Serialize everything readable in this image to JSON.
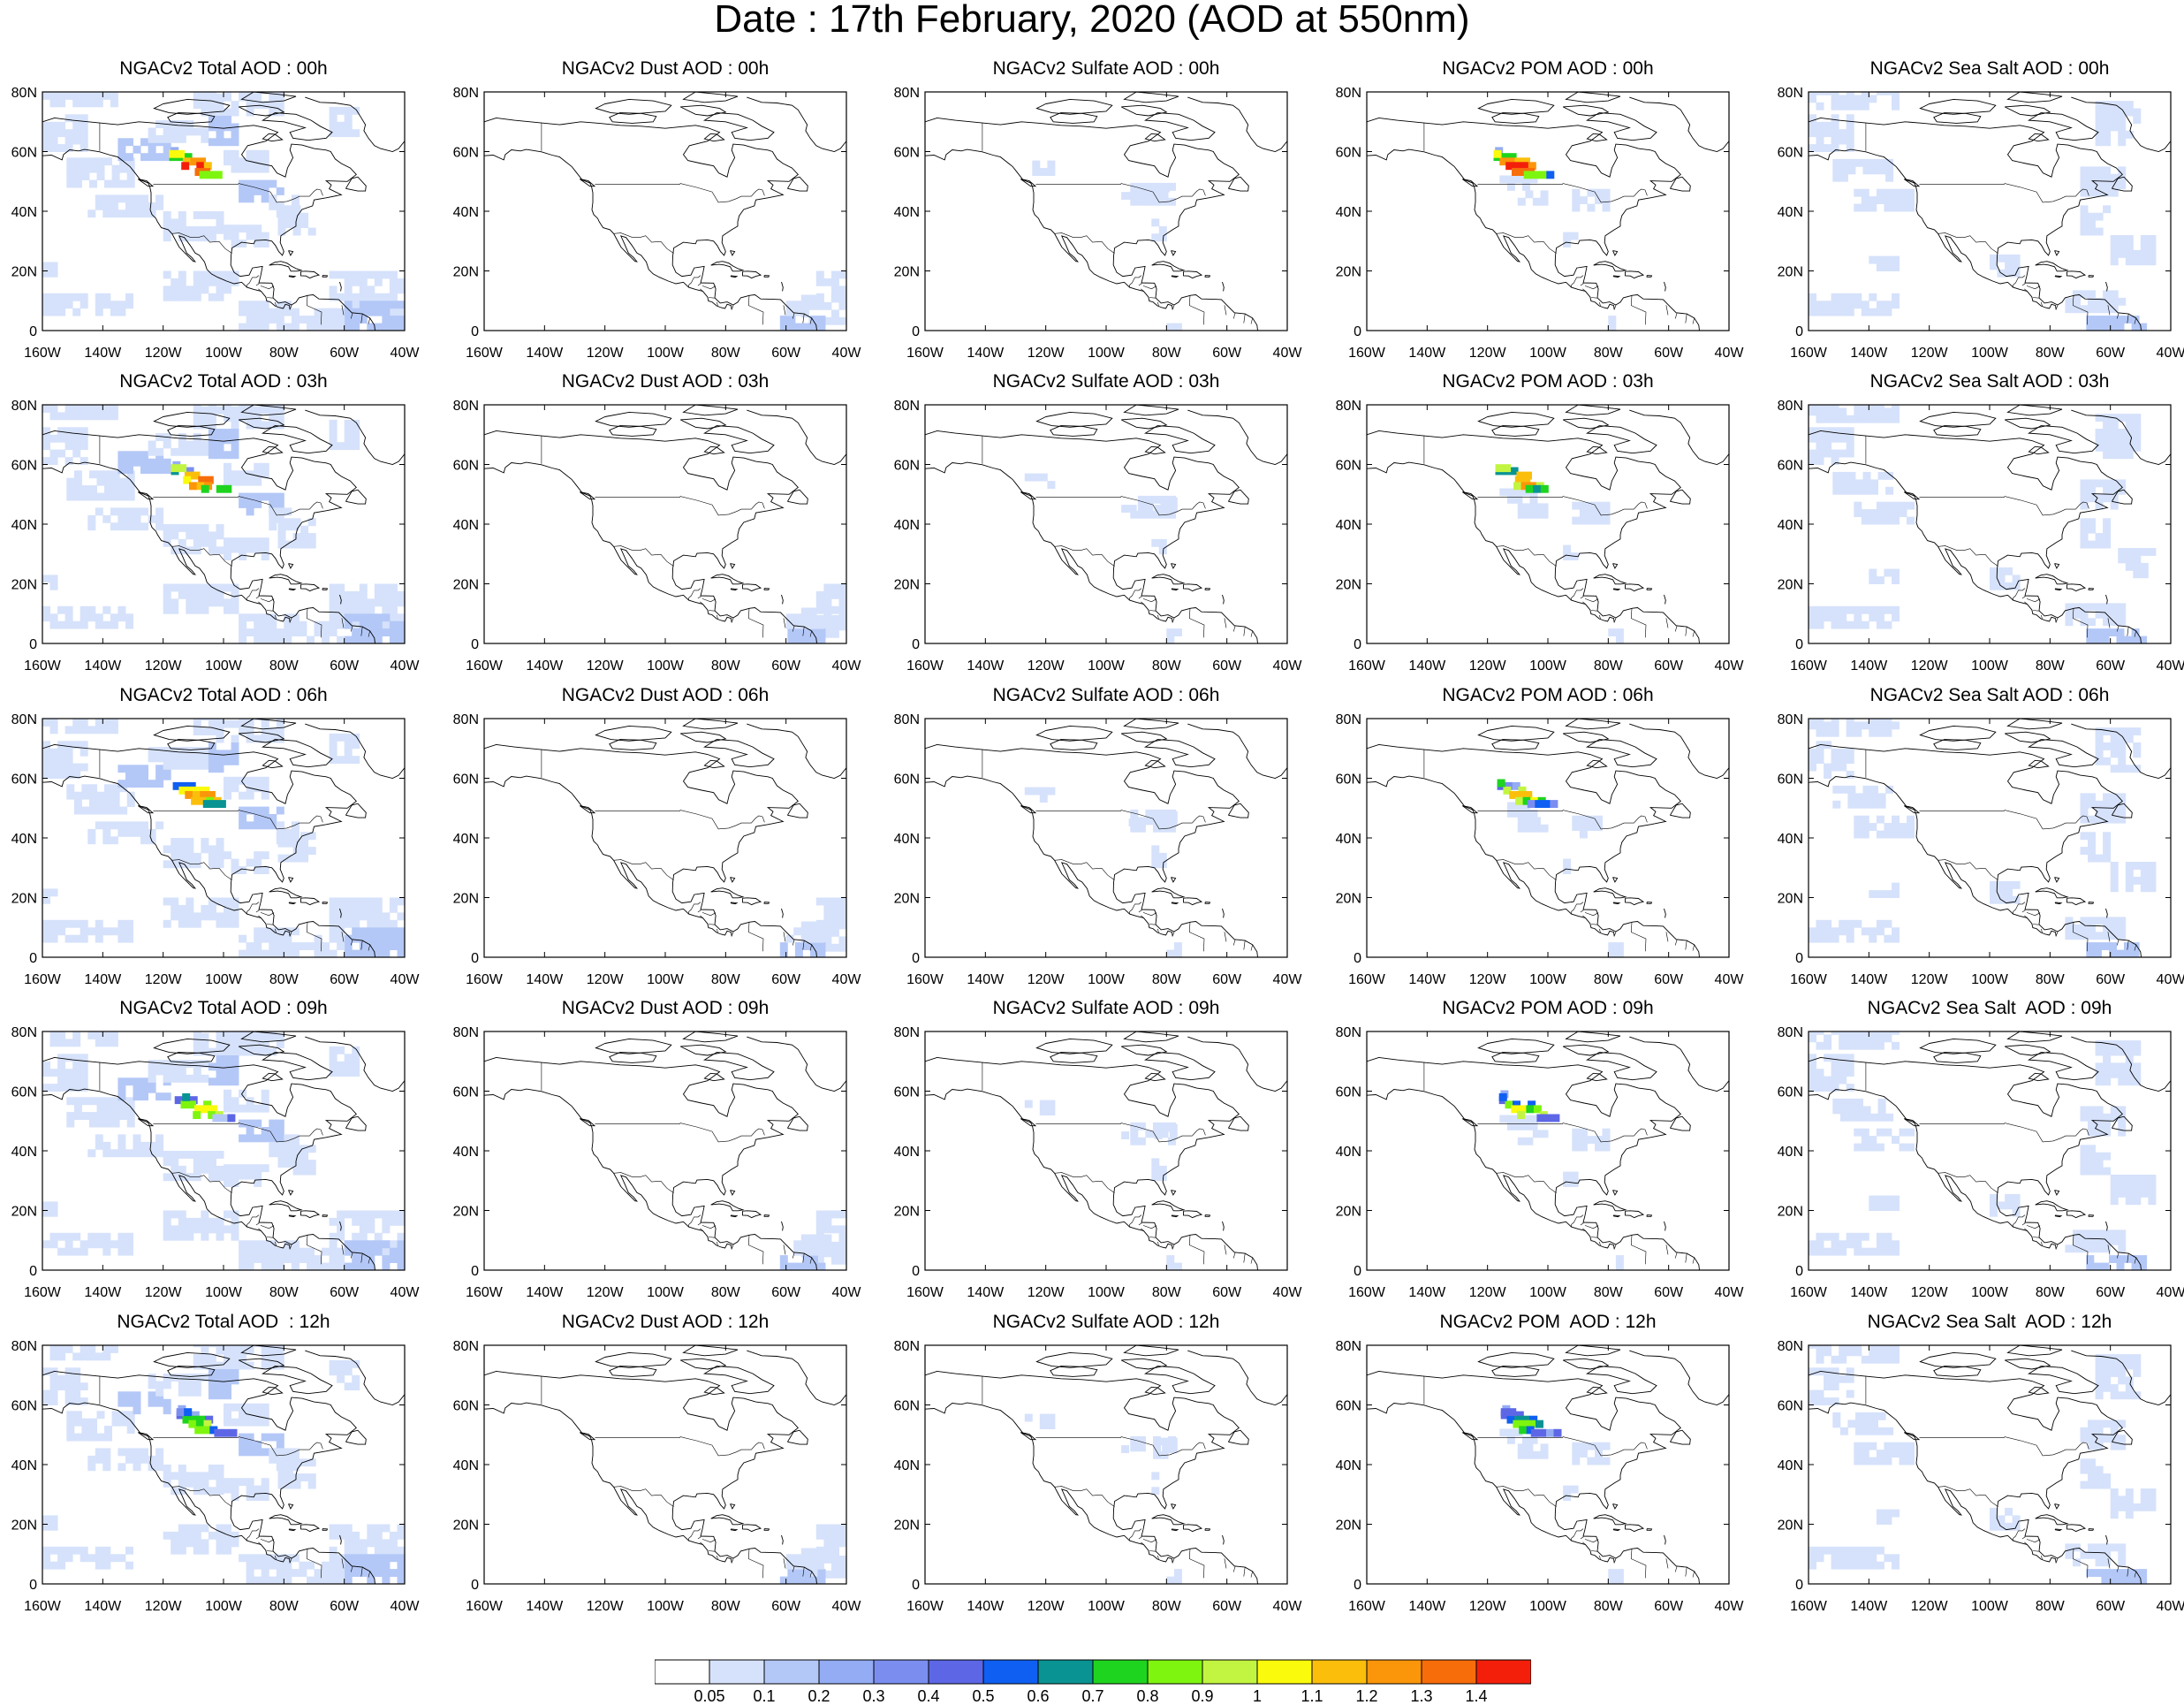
{
  "figure": {
    "title": "Date : 17th February, 2020 (AOD at 550nm)"
  },
  "map_axes": {
    "lat_ticks": [
      "80N",
      "60N",
      "40N",
      "20N",
      "0"
    ],
    "lat_values": [
      80,
      60,
      40,
      20,
      0
    ],
    "lon_ticks": [
      "160W",
      "140W",
      "120W",
      "100W",
      "80W",
      "60W",
      "40W"
    ],
    "lon_values": [
      -160,
      -140,
      -120,
      -100,
      -80,
      -60,
      -40
    ],
    "extent": {
      "lon_min": -160,
      "lon_max": -40,
      "lat_min": 0,
      "lat_max": 80
    },
    "basemap": "north-america-coastlines"
  },
  "panel_grid": {
    "rows": 5,
    "cols": 5,
    "titles": [
      [
        "NGACv2 Total AOD : 00h",
        "NGACv2 Dust AOD : 00h",
        "NGACv2 Sulfate AOD : 00h",
        "NGACv2 POM AOD : 00h",
        "NGACv2 Sea Salt AOD : 00h"
      ],
      [
        "NGACv2 Total AOD : 03h",
        "NGACv2 Dust AOD : 03h",
        "NGACv2 Sulfate AOD : 03h",
        "NGACv2 POM AOD : 03h",
        "NGACv2 Sea Salt AOD : 03h"
      ],
      [
        "NGACv2 Total AOD : 06h",
        "NGACv2 Dust AOD : 06h",
        "NGACv2 Sulfate AOD : 06h",
        "NGACv2 POM AOD : 06h",
        "NGACv2 Sea Salt AOD : 06h"
      ],
      [
        "NGACv2 Total AOD : 09h",
        "NGACv2 Dust AOD : 09h",
        "NGACv2 Sulfate AOD : 09h",
        "NGACv2 POM AOD : 09h",
        "NGACv2 Sea Salt  AOD : 09h"
      ],
      [
        "NGACv2 Total AOD  : 12h",
        "NGACv2 Dust AOD : 12h",
        "NGACv2 Sulfate AOD : 12h",
        "NGACv2 POM  AOD : 12h",
        "NGACv2 Sea Salt  AOD : 12h"
      ]
    ],
    "species": [
      "total",
      "dust",
      "sulfate",
      "pom",
      "seasalt"
    ],
    "hours": [
      "00h",
      "03h",
      "06h",
      "09h",
      "12h"
    ]
  },
  "colorbar": {
    "labels": [
      "0.05",
      "0.1",
      "0.2",
      "0.3",
      "0.4",
      "0.5",
      "0.6",
      "0.7",
      "0.8",
      "0.9",
      "1",
      "1.1",
      "1.2",
      "1.3",
      "1.4"
    ],
    "colors": [
      "#ffffff",
      "#d6e2fb",
      "#b4c8f7",
      "#93acf3",
      "#7b8ef0",
      "#5d67e6",
      "#0f5ff2",
      "#0a9393",
      "#1fd41f",
      "#7ef50e",
      "#c2f541",
      "#fafa0c",
      "#fbbf0b",
      "#fb960a",
      "#f76d0a",
      "#f41f0b"
    ]
  }
}
